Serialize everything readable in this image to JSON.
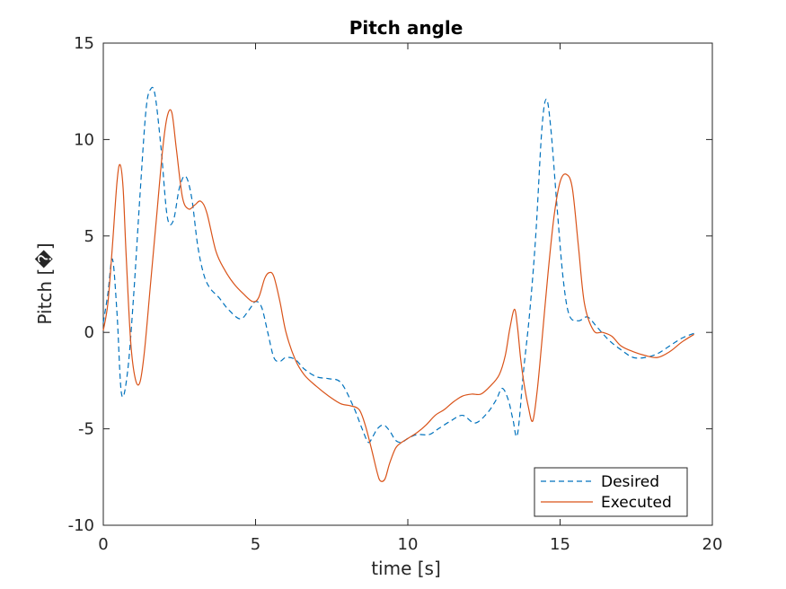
{
  "chart_data": {
    "type": "line",
    "title": "Pitch angle",
    "xlabel": "time [s]",
    "ylabel": "Pitch [�]",
    "xlim": [
      0,
      20
    ],
    "ylim": [
      -10,
      15
    ],
    "xticks": [
      0,
      5,
      10,
      15,
      20
    ],
    "yticks": [
      -10,
      -5,
      0,
      5,
      10,
      15
    ],
    "grid": false,
    "legend_position": "bottom-right",
    "series": [
      {
        "name": "Desired",
        "color": "#0072BD",
        "style": "dashed",
        "x": [
          0,
          0.15,
          0.3,
          0.45,
          0.6,
          0.8,
          1.0,
          1.2,
          1.4,
          1.55,
          1.7,
          1.9,
          2.1,
          2.3,
          2.5,
          2.7,
          2.9,
          3.1,
          3.3,
          3.5,
          3.8,
          4.1,
          4.5,
          4.8,
          5.0,
          5.2,
          5.4,
          5.6,
          5.8,
          6.0,
          6.3,
          6.6,
          7.0,
          7.4,
          7.8,
          8.2,
          8.5,
          8.7,
          8.85,
          9.0,
          9.2,
          9.4,
          9.6,
          9.8,
          10.0,
          10.3,
          10.7,
          11.0,
          11.4,
          11.8,
          12.2,
          12.6,
          12.9,
          13.1,
          13.3,
          13.45,
          13.6,
          13.8,
          14.0,
          14.2,
          14.4,
          14.55,
          14.7,
          14.9,
          15.1,
          15.3,
          15.6,
          15.9,
          16.2,
          16.6,
          17.0,
          17.4,
          17.8,
          18.2,
          18.6,
          19.0,
          19.4
        ],
        "y": [
          0.5,
          2.0,
          3.8,
          1.0,
          -3.2,
          -2.0,
          2.0,
          7.0,
          11.5,
          12.6,
          12.3,
          9.5,
          6.0,
          5.8,
          7.5,
          8.1,
          7.0,
          4.5,
          3.0,
          2.3,
          1.8,
          1.2,
          0.7,
          1.2,
          1.6,
          1.3,
          0.0,
          -1.3,
          -1.5,
          -1.3,
          -1.4,
          -1.9,
          -2.3,
          -2.4,
          -2.6,
          -3.8,
          -5.0,
          -5.7,
          -5.4,
          -5.0,
          -4.8,
          -5.1,
          -5.6,
          -5.7,
          -5.5,
          -5.3,
          -5.3,
          -5.0,
          -4.6,
          -4.3,
          -4.7,
          -4.2,
          -3.5,
          -2.9,
          -3.5,
          -4.5,
          -5.3,
          -2.0,
          1.0,
          5.0,
          10.5,
          12.1,
          10.5,
          6.5,
          2.8,
          0.9,
          0.6,
          0.8,
          0.3,
          -0.4,
          -0.9,
          -1.3,
          -1.3,
          -1.1,
          -0.7,
          -0.3,
          -0.05
        ]
      },
      {
        "name": "Executed",
        "color": "#D95319",
        "style": "solid",
        "x": [
          0,
          0.15,
          0.3,
          0.45,
          0.55,
          0.65,
          0.75,
          0.9,
          1.05,
          1.2,
          1.35,
          1.55,
          1.75,
          1.95,
          2.1,
          2.25,
          2.4,
          2.6,
          2.8,
          3.0,
          3.2,
          3.4,
          3.7,
          4.0,
          4.3,
          4.6,
          4.9,
          5.1,
          5.3,
          5.45,
          5.6,
          5.8,
          6.0,
          6.3,
          6.6,
          7.0,
          7.4,
          7.8,
          8.1,
          8.4,
          8.6,
          8.8,
          9.0,
          9.1,
          9.25,
          9.4,
          9.6,
          9.8,
          10.0,
          10.3,
          10.6,
          10.9,
          11.2,
          11.5,
          11.8,
          12.1,
          12.4,
          12.7,
          13.0,
          13.2,
          13.35,
          13.5,
          13.6,
          13.7,
          13.8,
          13.95,
          14.1,
          14.25,
          14.4,
          14.6,
          14.8,
          15.0,
          15.2,
          15.4,
          15.6,
          15.8,
          16.1,
          16.4,
          16.7,
          17.0,
          17.4,
          17.8,
          18.2,
          18.6,
          19.0,
          19.4
        ],
        "y": [
          0.1,
          1.5,
          4.5,
          7.8,
          8.7,
          7.5,
          4.0,
          -0.5,
          -2.4,
          -2.6,
          -1.0,
          2.5,
          6.0,
          9.5,
          11.2,
          11.4,
          9.5,
          7.0,
          6.4,
          6.6,
          6.8,
          6.2,
          4.2,
          3.2,
          2.5,
          2.0,
          1.6,
          1.8,
          2.8,
          3.1,
          2.9,
          1.6,
          0.0,
          -1.4,
          -2.2,
          -2.8,
          -3.3,
          -3.7,
          -3.8,
          -4.0,
          -4.8,
          -6.0,
          -7.3,
          -7.7,
          -7.6,
          -6.8,
          -6.0,
          -5.7,
          -5.5,
          -5.2,
          -4.8,
          -4.3,
          -4.0,
          -3.6,
          -3.3,
          -3.2,
          -3.2,
          -2.8,
          -2.2,
          -1.2,
          0.2,
          1.2,
          0.3,
          -1.3,
          -2.5,
          -3.8,
          -4.6,
          -3.0,
          -0.5,
          3.0,
          6.0,
          7.8,
          8.2,
          7.5,
          4.5,
          1.5,
          0.1,
          0.0,
          -0.2,
          -0.7,
          -1.0,
          -1.2,
          -1.3,
          -1.0,
          -0.5,
          -0.1
        ]
      }
    ]
  }
}
